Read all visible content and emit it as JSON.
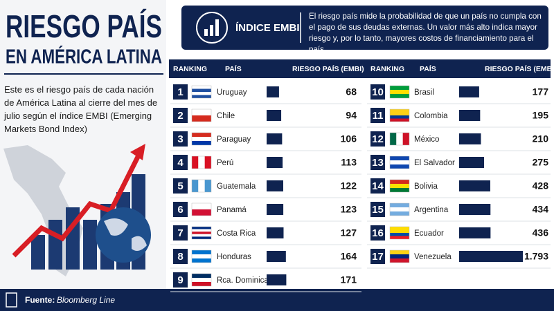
{
  "title_line1": "RIESGO PAÍS",
  "title_line2": "EN AMÉRICA LATINA",
  "description": "Este es el riesgo país de cada nación de América Latina al cierre del mes de julio según el índice EMBI (Emerging Markets Bond Index)",
  "info_title": "ÍNDICE EMBI",
  "info_text": "El riesgo país mide la probabilidad de que un país no cumpla con el pago de sus deudas externas. Un valor más alto indica mayor riesgo y, por lo tanto, mayores costos de financiamiento para el país.",
  "source_label": "Fuente:",
  "source": "Bloomberg Line",
  "chart_data": {
    "type": "bar",
    "column_headers": [
      "RANKING",
      "PAÍS",
      "RIESGO PAÍS (EMBI)"
    ],
    "ranks": [
      1,
      2,
      3,
      4,
      5,
      6,
      7,
      8,
      9,
      10,
      11,
      12,
      13,
      14,
      15,
      16,
      17
    ],
    "categories": [
      "Uruguay",
      "Chile",
      "Paraguay",
      "Perú",
      "Guatemala",
      "Panamá",
      "Costa Rica",
      "Honduras",
      "Rca. Dominicana",
      "Brasil",
      "Colombia",
      "México",
      "El Salvador",
      "Bolivia",
      "Argentina",
      "Ecuador",
      "Venezuela"
    ],
    "values": [
      68,
      94,
      106,
      113,
      122,
      123,
      127,
      164,
      171,
      177,
      195,
      210,
      275,
      428,
      434,
      436,
      1793
    ],
    "value_labels": [
      "68",
      "94",
      "106",
      "113",
      "122",
      "123",
      "127",
      "164",
      "171",
      "177",
      "195",
      "210",
      "275",
      "428",
      "434",
      "436",
      "1.793"
    ],
    "color": "#0f2350"
  }
}
